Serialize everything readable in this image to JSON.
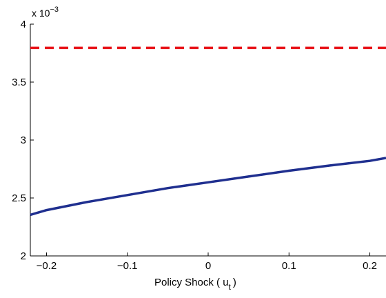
{
  "chart_data": {
    "type": "line",
    "title": "",
    "xlabel": "Policy Shock ( u",
    "xlabel_subscript": "t",
    "xlabel_suffix": ")",
    "ylabel": "",
    "y_multiplier_base": "x 10",
    "y_multiplier_exponent": "−3",
    "xlim": [
      -0.22,
      0.22
    ],
    "ylim": [
      0.002,
      0.004
    ],
    "x_ticks": [
      -0.2,
      -0.1,
      0,
      0.1,
      0.2
    ],
    "x_tick_labels": [
      "−0.2",
      "−0.1",
      "0",
      "0.1",
      "0.2"
    ],
    "y_ticks": [
      0.002,
      0.0025,
      0.003,
      0.0035,
      0.004
    ],
    "y_tick_labels": [
      "2",
      "2.5",
      "3",
      "3.5",
      "4"
    ],
    "grid": false,
    "series": [
      {
        "color": "#1f2f8f",
        "style": "solid",
        "x": [
          -0.22,
          -0.2,
          -0.15,
          -0.1,
          -0.05,
          0,
          0.05,
          0.1,
          0.15,
          0.2,
          0.22
        ],
        "y": [
          0.002355,
          0.002395,
          0.002465,
          0.002525,
          0.002585,
          0.002635,
          0.002685,
          0.002735,
          0.00278,
          0.00282,
          0.002845
        ]
      },
      {
        "color": "#e8141a",
        "style": "dashed",
        "x": [
          -0.22,
          0.22
        ],
        "y": [
          0.003795,
          0.003795
        ]
      }
    ]
  }
}
